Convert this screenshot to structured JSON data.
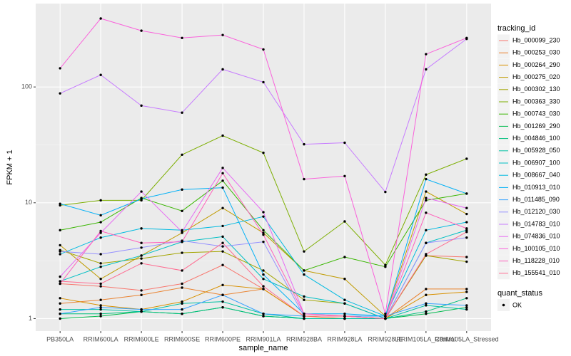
{
  "chart_data": {
    "type": "line",
    "x_label": "sample_name",
    "y_label": "FPKM + 1",
    "log_scale": true,
    "grid": true,
    "ylim": [
      0.78,
      525
    ],
    "yticks": [
      1,
      10,
      100
    ],
    "categories": [
      "PB350LA",
      "RRIM600LA",
      "RRIM600LE",
      "RRIM600SE",
      "RRIM600PE",
      "RRIM901LA",
      "RRIM928BA",
      "RRIM928LA",
      "RRIM928LE",
      "RRIM105LA_Control",
      "RRIM105LA_Stressed"
    ],
    "legend_title": "tracking_id",
    "legend_position": "right",
    "point_legend": {
      "title": "quant_status",
      "labels": [
        "OK"
      ]
    },
    "series": [
      {
        "name": "Hb_000099_230",
        "color": "#F8766D",
        "values": [
          2.0,
          1.9,
          1.75,
          2.0,
          2.9,
          1.8,
          1.05,
          1.05,
          1.0,
          3.5,
          3.4
        ]
      },
      {
        "name": "Hb_000253_030",
        "color": "#EA8331",
        "values": [
          1.35,
          1.45,
          1.6,
          1.85,
          1.6,
          1.8,
          1.05,
          1.0,
          1.0,
          1.8,
          1.8
        ]
      },
      {
        "name": "Hb_000264_290",
        "color": "#D89000",
        "values": [
          1.5,
          1.3,
          1.2,
          1.4,
          1.95,
          1.8,
          1.05,
          1.05,
          1.0,
          1.6,
          1.7
        ]
      },
      {
        "name": "Hb_000275_020",
        "color": "#C09B00",
        "values": [
          4.3,
          2.2,
          3.5,
          5.5,
          9.0,
          5.5,
          2.6,
          2.2,
          1.05,
          12.5,
          8.0
        ]
      },
      {
        "name": "Hb_000302_130",
        "color": "#A3A500",
        "values": [
          3.9,
          3.0,
          3.3,
          3.7,
          3.8,
          2.6,
          1.45,
          1.35,
          1.0,
          3.5,
          3.1
        ]
      },
      {
        "name": "Hb_000363_330",
        "color": "#7CAE00",
        "values": [
          9.5,
          10.5,
          10.5,
          26,
          38,
          27,
          3.8,
          6.9,
          2.9,
          17.5,
          24
        ]
      },
      {
        "name": "Hb_000743_030",
        "color": "#39B600",
        "values": [
          5.8,
          6.8,
          11.0,
          8.5,
          15.5,
          5.8,
          2.6,
          3.4,
          2.8,
          10.5,
          12.0
        ]
      },
      {
        "name": "Hb_001269_290",
        "color": "#00BB4E",
        "values": [
          1.0,
          1.05,
          1.15,
          1.1,
          1.25,
          1.05,
          1.0,
          1.0,
          1.0,
          1.1,
          1.25
        ]
      },
      {
        "name": "Hb_004846_100",
        "color": "#00BF7D",
        "values": [
          1.1,
          1.1,
          1.15,
          1.1,
          1.25,
          1.05,
          1.0,
          1.0,
          1.0,
          1.15,
          1.5
        ]
      },
      {
        "name": "Hb_005928_050",
        "color": "#00C1A3",
        "values": [
          1.2,
          1.2,
          1.15,
          1.35,
          1.4,
          1.1,
          1.0,
          1.0,
          1.0,
          1.3,
          1.2
        ]
      },
      {
        "name": "Hb_006907_100",
        "color": "#00BFC4",
        "values": [
          2.1,
          2.8,
          3.5,
          4.6,
          5.1,
          2.2,
          1.55,
          1.35,
          1.0,
          4.5,
          5.8
        ]
      },
      {
        "name": "Hb_008667_040",
        "color": "#00BAE0",
        "values": [
          3.6,
          5.0,
          6.0,
          5.8,
          6.3,
          7.6,
          2.4,
          1.45,
          1.05,
          5.8,
          6.8
        ]
      },
      {
        "name": "Hb_010913_010",
        "color": "#00B0F6",
        "values": [
          9.8,
          7.8,
          10.8,
          13,
          13.5,
          2.4,
          1.1,
          1.1,
          1.05,
          16,
          12
        ]
      },
      {
        "name": "Hb_011485_090",
        "color": "#35A2FF",
        "values": [
          1.1,
          1.25,
          1.2,
          1.2,
          1.6,
          1.1,
          1.05,
          1.05,
          1.05,
          1.35,
          1.3
        ]
      },
      {
        "name": "Hb_012120_030",
        "color": "#9590FF",
        "values": [
          3.8,
          3.6,
          4.1,
          4.7,
          4.2,
          4.6,
          1.05,
          1.05,
          1.0,
          4.5,
          5.0
        ]
      },
      {
        "name": "Hb_014783_010",
        "color": "#C77CFF",
        "values": [
          88,
          127,
          69,
          60,
          142,
          110,
          32,
          33,
          12.4,
          142,
          260
        ]
      },
      {
        "name": "Hb_074836_010",
        "color": "#E76BF3",
        "values": [
          2.3,
          5.5,
          12.5,
          5.6,
          20,
          8.3,
          1.1,
          1.05,
          1.0,
          11.0,
          9.0
        ]
      },
      {
        "name": "Hb_100105_010",
        "color": "#FA62DB",
        "values": [
          145,
          390,
          306,
          265,
          281,
          211,
          16,
          17,
          1.1,
          192,
          265
        ]
      },
      {
        "name": "Hb_118228_010",
        "color": "#FF62BC",
        "values": [
          2.0,
          5.7,
          4.5,
          4.6,
          18,
          5.3,
          1.1,
          1.05,
          1.0,
          8.2,
          6.0
        ]
      },
      {
        "name": "Hb_155541_010",
        "color": "#FF6C91",
        "values": [
          2.1,
          2.0,
          3.0,
          2.6,
          4.5,
          1.9,
          1.05,
          1.05,
          1.0,
          3.6,
          5.6
        ]
      }
    ]
  }
}
